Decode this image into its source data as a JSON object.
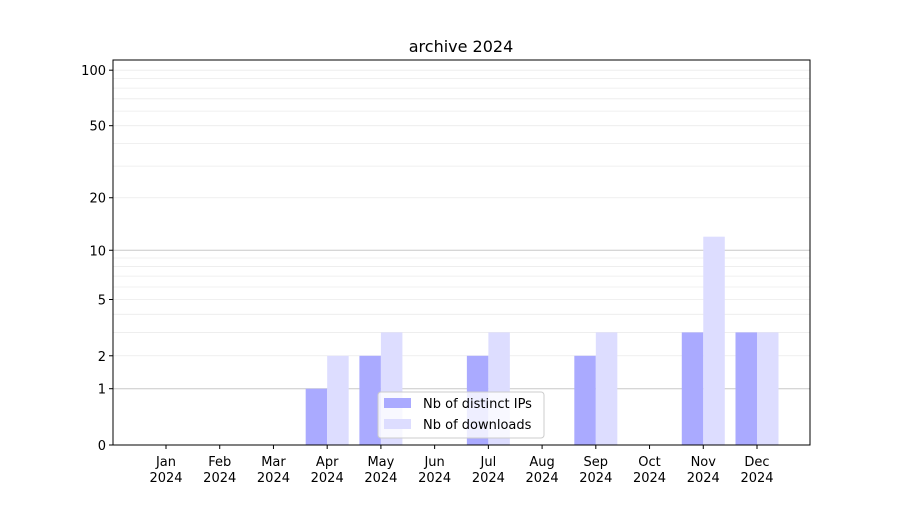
{
  "chart_data": {
    "type": "bar",
    "title": "archive 2024",
    "xlabel": "",
    "ylabel": "",
    "y_scale": "log(1+y)",
    "ylim": [
      0,
      113
    ],
    "y_ticks": [
      0,
      1,
      2,
      5,
      10,
      20,
      50,
      100
    ],
    "grid": true,
    "legend_position": "bottom-center",
    "categories": [
      "Jan\n2024",
      "Feb\n2024",
      "Mar\n2024",
      "Apr\n2024",
      "May\n2024",
      "Jun\n2024",
      "Jul\n2024",
      "Aug\n2024",
      "Sep\n2024",
      "Oct\n2024",
      "Nov\n2024",
      "Dec\n2024"
    ],
    "series": [
      {
        "name": "Nb of distinct IPs",
        "color": "#aaaaff",
        "values": [
          0,
          0,
          0,
          1,
          2,
          0,
          2,
          0,
          2,
          0,
          3,
          3
        ]
      },
      {
        "name": "Nb of downloads",
        "color": "#ddddff",
        "values": [
          0,
          0,
          0,
          2,
          3,
          0,
          3,
          0,
          3,
          0,
          12,
          3
        ]
      }
    ]
  }
}
